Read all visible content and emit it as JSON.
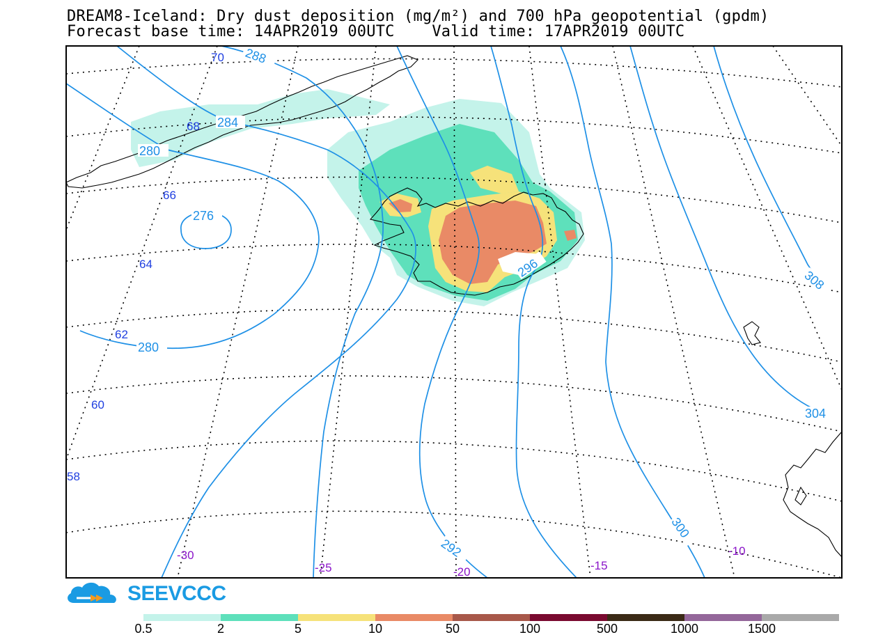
{
  "header": {
    "title_line1": "DREAM8-Iceland: Dry dust deposition (mg/m²) and 700 hPa geopotential (gpdm)",
    "title_line2": "Forecast base time: 14APR2019 00UTC    Valid time: 17APR2019 00UTC"
  },
  "map": {
    "contour_color": "#1e90e6",
    "contour_labels": [
      "288",
      "284",
      "280",
      "276",
      "280",
      "292",
      "296",
      "300",
      "304",
      "308"
    ],
    "latitude_labels": [
      "70",
      "68",
      "66",
      "64",
      "62",
      "60",
      "58"
    ],
    "latitude_label_color": "#1f3fe0",
    "longitude_labels": [
      "-30",
      "-25",
      "-20",
      "-15",
      "-10"
    ],
    "longitude_label_color": "#8a14c8"
  },
  "logo": {
    "text": "SEEVCCC"
  },
  "colorbar": {
    "colors": [
      "#c4f3ea",
      "#5ee0bb",
      "#f6e27a",
      "#e98a66",
      "#a8584a",
      "#7a0a30",
      "#3b2a16",
      "#94679a",
      "#a9a9a9"
    ],
    "labels": [
      "0.5",
      "2",
      "5",
      "10",
      "50",
      "100",
      "500",
      "1000",
      "1500"
    ]
  }
}
